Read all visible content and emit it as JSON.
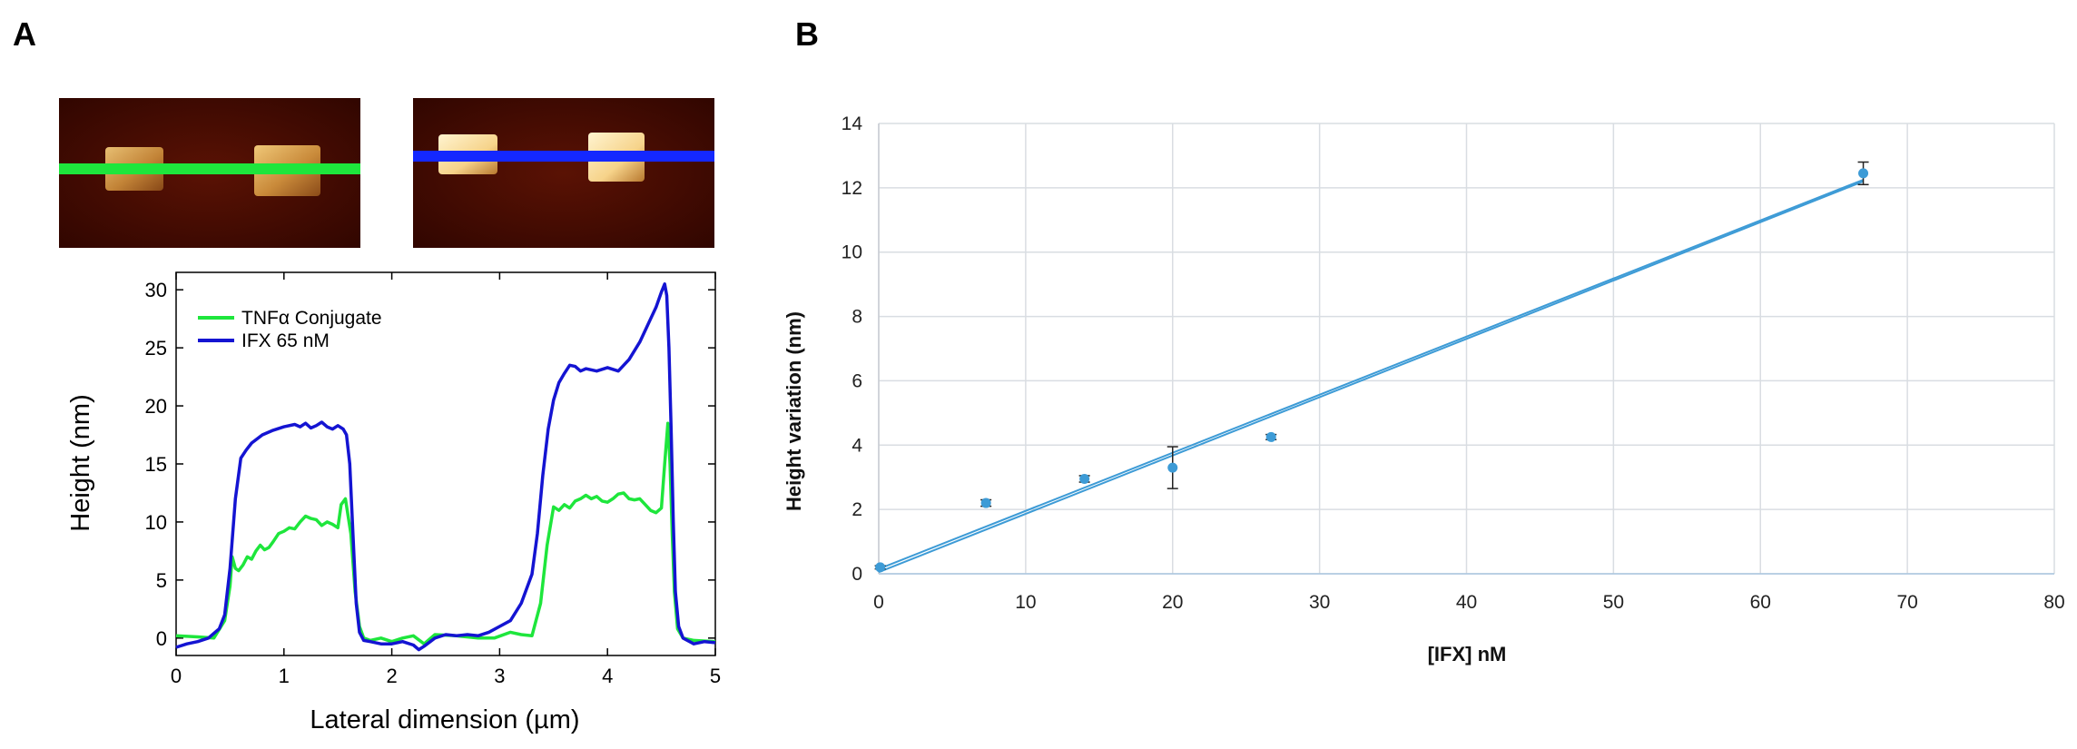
{
  "panels": {
    "a_label": "A",
    "b_label": "B"
  },
  "afm_images": {
    "left_line_color": "#1ee63c",
    "right_line_color": "#1428ff",
    "background_color": "#3a0800",
    "feature_color": "#e8b860"
  },
  "chart_data": [
    {
      "type": "line",
      "panel": "A",
      "title": "",
      "xlabel": "Lateral dimension (µm)",
      "ylabel": "Height (nm)",
      "xlim": [
        0,
        5
      ],
      "ylim": [
        -1.5,
        31.5
      ],
      "xticks": [
        "0",
        "1",
        "2",
        "3",
        "4",
        "5"
      ],
      "yticks": [
        "0",
        "5",
        "10",
        "15",
        "20",
        "25",
        "30"
      ],
      "grid": false,
      "legend_position": "top-left",
      "series": [
        {
          "name": "TNFα Conjugate",
          "color": "#1ee63c",
          "x": [
            0,
            0.2,
            0.35,
            0.45,
            0.5,
            0.52,
            0.55,
            0.58,
            0.62,
            0.66,
            0.7,
            0.74,
            0.78,
            0.82,
            0.86,
            0.9,
            0.95,
            1.0,
            1.05,
            1.1,
            1.15,
            1.2,
            1.25,
            1.3,
            1.35,
            1.4,
            1.45,
            1.5,
            1.53,
            1.57,
            1.62,
            1.66,
            1.7,
            1.74,
            1.8,
            1.9,
            2.0,
            2.1,
            2.2,
            2.3,
            2.4,
            2.6,
            2.8,
            2.95,
            3.1,
            3.2,
            3.3,
            3.38,
            3.44,
            3.5,
            3.55,
            3.6,
            3.65,
            3.7,
            3.75,
            3.8,
            3.85,
            3.9,
            3.95,
            4.0,
            4.05,
            4.1,
            4.15,
            4.2,
            4.25,
            4.3,
            4.35,
            4.4,
            4.45,
            4.5,
            4.53,
            4.56,
            4.58,
            4.6,
            4.62,
            4.65,
            4.7,
            4.8,
            5.0
          ],
          "y": [
            0.2,
            0.1,
            0.0,
            1.5,
            4.5,
            7.0,
            6.0,
            5.8,
            6.3,
            7.0,
            6.8,
            7.5,
            8.0,
            7.6,
            7.8,
            8.3,
            9.0,
            9.2,
            9.5,
            9.4,
            10.0,
            10.5,
            10.3,
            10.2,
            9.7,
            10.0,
            9.8,
            9.5,
            11.5,
            12.0,
            9.0,
            4.0,
            1.0,
            0.0,
            -0.2,
            0.0,
            -0.3,
            0.0,
            0.2,
            -0.5,
            0.3,
            0.2,
            0.0,
            0.0,
            0.5,
            0.3,
            0.2,
            3.0,
            8.0,
            11.3,
            11.0,
            11.5,
            11.2,
            11.8,
            12.0,
            12.3,
            12.0,
            12.2,
            11.8,
            11.7,
            12.0,
            12.4,
            12.5,
            12.0,
            11.9,
            12.0,
            11.5,
            11.0,
            10.8,
            11.2,
            15.0,
            18.5,
            15.0,
            9.0,
            4.0,
            0.8,
            0.0,
            -0.2,
            -0.3
          ]
        },
        {
          "name": "IFX 65 nM",
          "color": "#1414d2",
          "x": [
            0,
            0.1,
            0.2,
            0.3,
            0.4,
            0.45,
            0.5,
            0.55,
            0.6,
            0.65,
            0.7,
            0.8,
            0.9,
            1.0,
            1.1,
            1.15,
            1.2,
            1.25,
            1.3,
            1.35,
            1.4,
            1.45,
            1.5,
            1.55,
            1.58,
            1.61,
            1.64,
            1.67,
            1.7,
            1.74,
            1.8,
            1.9,
            2.0,
            2.1,
            2.2,
            2.25,
            2.3,
            2.4,
            2.5,
            2.6,
            2.7,
            2.8,
            2.9,
            3.0,
            3.1,
            3.2,
            3.3,
            3.35,
            3.4,
            3.45,
            3.5,
            3.55,
            3.6,
            3.65,
            3.7,
            3.75,
            3.8,
            3.9,
            4.0,
            4.1,
            4.2,
            4.3,
            4.35,
            4.4,
            4.45,
            4.5,
            4.53,
            4.55,
            4.57,
            4.59,
            4.61,
            4.63,
            4.66,
            4.7,
            4.8,
            4.9,
            5.0
          ],
          "y": [
            -0.8,
            -0.5,
            -0.3,
            0.0,
            0.8,
            2.0,
            6.0,
            12.0,
            15.5,
            16.2,
            16.8,
            17.5,
            17.9,
            18.2,
            18.4,
            18.2,
            18.5,
            18.1,
            18.3,
            18.6,
            18.2,
            18.0,
            18.3,
            18.0,
            17.5,
            15.0,
            9.0,
            3.0,
            0.5,
            -0.2,
            -0.3,
            -0.5,
            -0.5,
            -0.3,
            -0.6,
            -1.0,
            -0.7,
            0.0,
            0.3,
            0.2,
            0.3,
            0.2,
            0.5,
            1.0,
            1.5,
            3.0,
            5.5,
            9.0,
            14.0,
            18.0,
            20.5,
            22.0,
            22.8,
            23.5,
            23.4,
            23.0,
            23.2,
            23.0,
            23.3,
            23.0,
            24.0,
            25.5,
            26.5,
            27.5,
            28.5,
            29.8,
            30.5,
            29.5,
            25.0,
            18.0,
            10.0,
            4.0,
            1.0,
            0.0,
            -0.5,
            -0.3,
            -0.4
          ]
        }
      ]
    },
    {
      "type": "scatter",
      "panel": "B",
      "title": "",
      "xlabel": "[IFX] nM",
      "ylabel": "Height variation (nm)",
      "xlim": [
        0,
        80
      ],
      "ylim": [
        0,
        14
      ],
      "xticks": [
        "0",
        "10",
        "20",
        "30",
        "40",
        "50",
        "60",
        "70",
        "80"
      ],
      "yticks": [
        "0",
        "2",
        "4",
        "6",
        "8",
        "10",
        "12",
        "14"
      ],
      "grid": true,
      "color": "#3d9bd6",
      "points": [
        {
          "x": 0.1,
          "y": 0.2,
          "err": 0.05
        },
        {
          "x": 7.3,
          "y": 2.2,
          "err": 0.1
        },
        {
          "x": 14.0,
          "y": 2.95,
          "err": 0.1
        },
        {
          "x": 20.0,
          "y": 3.3,
          "err": 0.65
        },
        {
          "x": 26.7,
          "y": 4.25,
          "err": 0.08
        },
        {
          "x": 67.0,
          "y": 12.45,
          "err": 0.35
        }
      ],
      "fit_lines": [
        {
          "x": [
            0,
            67
          ],
          "y": [
            0.15,
            12.25
          ]
        },
        {
          "x": [
            0,
            67
          ],
          "y": [
            0.05,
            12.2
          ]
        }
      ]
    }
  ]
}
